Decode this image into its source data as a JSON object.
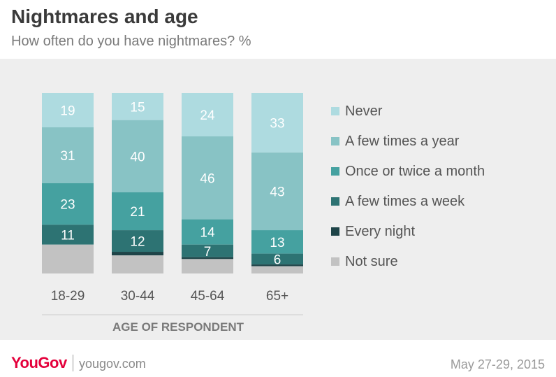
{
  "header": {
    "title": "Nightmares and age",
    "subtitle": "How often do you have nightmares? %"
  },
  "footer": {
    "logo": "YouGov",
    "url": "yougov.com",
    "date": "May 27-29, 2015"
  },
  "chart_data": {
    "type": "bar",
    "stacked": true,
    "orientation": "vertical",
    "title": "Nightmares and age",
    "subtitle": "How often do you have nightmares? %",
    "xlabel": "AGE OF RESPONDENT",
    "ylabel": "",
    "ylim": [
      0,
      100
    ],
    "grid": false,
    "legend_position": "right",
    "categories": [
      "18-29",
      "30-44",
      "45-64",
      "65+"
    ],
    "series": [
      {
        "name": "Never",
        "color": "#aedbe0",
        "values": [
          19,
          15,
          24,
          33
        ],
        "labels": [
          "19",
          "15",
          "24",
          "33"
        ]
      },
      {
        "name": "A few times a year",
        "color": "#88c3c5",
        "values": [
          31,
          40,
          46,
          43
        ],
        "labels": [
          "31",
          "40",
          "46",
          "43"
        ]
      },
      {
        "name": "Once or twice a month",
        "color": "#45a1a0",
        "values": [
          23,
          21,
          14,
          13
        ],
        "labels": [
          "23",
          "21",
          "14",
          "13"
        ]
      },
      {
        "name": "A few times a week",
        "color": "#2d7373",
        "values": [
          11,
          12,
          7,
          6
        ],
        "labels": [
          "11",
          "12",
          "7",
          "6"
        ]
      },
      {
        "name": "Every night",
        "color": "#1e4448",
        "values": [
          0,
          2,
          1,
          1
        ],
        "labels": [
          "",
          "",
          "",
          ""
        ]
      },
      {
        "name": "Not sure",
        "color": "#c2c2c2",
        "values": [
          16,
          10,
          8,
          4
        ],
        "labels": [
          "",
          "",
          "",
          ""
        ]
      }
    ]
  }
}
